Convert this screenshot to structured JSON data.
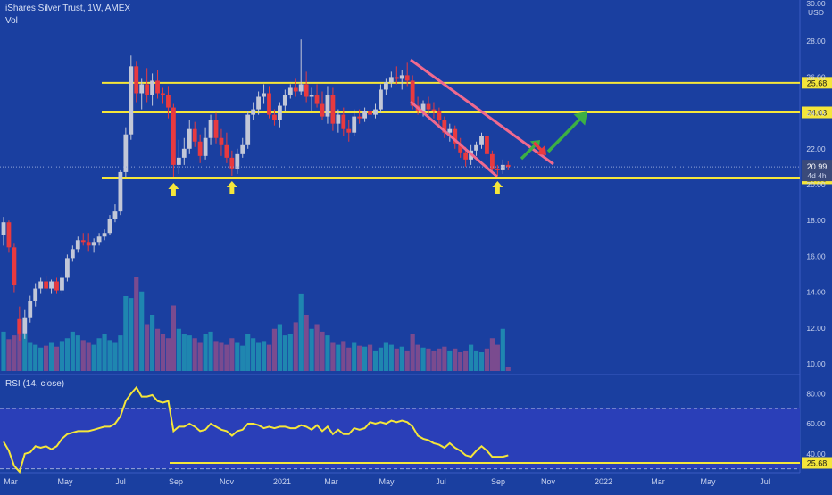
{
  "header": {
    "title": "iShares Silver Trust, 1W, AMEX",
    "volume_label": "Vol",
    "rsi_label": "RSI (14, close)"
  },
  "colors": {
    "background": "#1a3fa0",
    "rsi_panel": "#2a3fb8",
    "up": "#c2c7d8",
    "down": "#e83a3f",
    "vol_up": "#1f86b0",
    "vol_down": "#7a4b8f",
    "level": "#f5e63a",
    "channel": "#f06a8f",
    "arrow_green": "#3cb044",
    "arrow_red": "#e83a3f",
    "rsi_line": "#f5e63a"
  },
  "chart_data": [
    {
      "type": "candlestick",
      "title": "iShares Silver Trust, 1W, AMEX",
      "ylim": [
        9.6,
        30.2
      ],
      "price_ticks": [
        "10.00",
        "12.00",
        "14.00",
        "16.00",
        "18.00",
        "20.00",
        "22.00",
        "24.00",
        "26.00",
        "28.00",
        "30.00"
      ],
      "currency": "USD",
      "x_labels": [
        "Mar",
        "May",
        "Jul",
        "Sep",
        "Nov",
        "2021",
        "Mar",
        "May",
        "Jul",
        "Sep",
        "Nov",
        "2022",
        "Mar",
        "May",
        "Jul"
      ],
      "current_price": "20.99",
      "countdown": "4d 4h",
      "horizontal_levels": [
        {
          "value": 25.68,
          "label": "25.68"
        },
        {
          "value": 24.03,
          "label": "24.03"
        },
        {
          "value": 20.35,
          "label": "20.35"
        }
      ],
      "candles": [
        [
          17.2,
          18.2,
          16.6,
          17.9
        ],
        [
          17.9,
          18.0,
          16.2,
          16.5
        ],
        [
          16.5,
          16.7,
          14.0,
          14.4
        ],
        [
          12.5,
          13.2,
          11.3,
          11.7
        ],
        [
          11.7,
          13.0,
          11.4,
          12.6
        ],
        [
          12.6,
          13.8,
          12.3,
          13.5
        ],
        [
          13.5,
          14.5,
          13.2,
          14.2
        ],
        [
          14.2,
          14.8,
          13.9,
          14.6
        ],
        [
          14.6,
          14.9,
          14.1,
          14.2
        ],
        [
          14.2,
          14.7,
          13.9,
          14.6
        ],
        [
          14.6,
          14.8,
          13.9,
          14.1
        ],
        [
          14.1,
          15.0,
          13.9,
          14.8
        ],
        [
          14.8,
          16.1,
          14.6,
          15.9
        ],
        [
          15.9,
          16.6,
          15.7,
          16.4
        ],
        [
          16.4,
          17.1,
          16.2,
          16.9
        ],
        [
          16.9,
          17.3,
          16.6,
          16.8
        ],
        [
          16.8,
          17.3,
          16.3,
          16.6
        ],
        [
          16.6,
          17.0,
          16.2,
          16.8
        ],
        [
          16.8,
          17.3,
          16.6,
          17.1
        ],
        [
          17.1,
          17.5,
          16.9,
          17.3
        ],
        [
          17.3,
          18.3,
          17.2,
          18.1
        ],
        [
          18.1,
          18.9,
          17.9,
          18.5
        ],
        [
          18.5,
          20.8,
          18.3,
          20.7
        ],
        [
          20.7,
          23.2,
          20.4,
          22.8
        ],
        [
          22.8,
          27.2,
          22.5,
          26.6
        ],
        [
          26.6,
          26.9,
          24.6,
          25.1
        ],
        [
          25.1,
          25.9,
          24.2,
          25.6
        ],
        [
          25.6,
          26.5,
          24.6,
          25.0
        ],
        [
          25.0,
          26.2,
          24.4,
          25.8
        ],
        [
          25.8,
          26.4,
          24.8,
          25.1
        ],
        [
          25.1,
          25.4,
          24.5,
          25.0
        ],
        [
          25.0,
          25.5,
          23.7,
          24.3
        ],
        [
          24.3,
          24.5,
          20.4,
          21.1
        ],
        [
          21.1,
          22.5,
          20.6,
          21.5
        ],
        [
          21.5,
          22.6,
          21.1,
          22.0
        ],
        [
          22.0,
          23.6,
          21.7,
          23.1
        ],
        [
          23.1,
          23.5,
          22.1,
          22.4
        ],
        [
          22.4,
          22.8,
          21.2,
          21.6
        ],
        [
          21.6,
          23.2,
          21.4,
          22.6
        ],
        [
          22.6,
          23.9,
          22.2,
          23.6
        ],
        [
          23.6,
          24.0,
          22.3,
          22.6
        ],
        [
          22.6,
          23.1,
          21.6,
          22.2
        ],
        [
          22.2,
          22.9,
          21.2,
          21.5
        ],
        [
          21.5,
          21.9,
          20.5,
          20.9
        ],
        [
          20.9,
          22.0,
          20.6,
          21.7
        ],
        [
          21.7,
          22.6,
          21.5,
          22.2
        ],
        [
          22.2,
          24.1,
          22.0,
          23.9
        ],
        [
          23.9,
          24.6,
          23.6,
          24.2
        ],
        [
          24.2,
          25.2,
          23.9,
          24.9
        ],
        [
          24.9,
          25.6,
          24.5,
          25.1
        ],
        [
          25.1,
          25.5,
          23.7,
          23.9
        ],
        [
          23.9,
          24.2,
          23.3,
          23.6
        ],
        [
          23.6,
          24.6,
          23.2,
          24.4
        ],
        [
          24.4,
          25.3,
          24.1,
          25.0
        ],
        [
          25.0,
          25.6,
          24.8,
          25.4
        ],
        [
          25.4,
          25.9,
          24.9,
          25.2
        ],
        [
          25.2,
          28.1,
          25.0,
          25.6
        ],
        [
          25.6,
          26.3,
          24.6,
          24.9
        ],
        [
          24.9,
          25.4,
          24.1,
          25.0
        ],
        [
          25.0,
          25.6,
          24.3,
          24.5
        ],
        [
          24.5,
          25.2,
          23.6,
          23.8
        ],
        [
          23.8,
          25.5,
          23.4,
          25.0
        ],
        [
          25.0,
          25.4,
          23.0,
          23.4
        ],
        [
          23.4,
          24.2,
          22.9,
          23.9
        ],
        [
          23.9,
          24.3,
          22.7,
          23.1
        ],
        [
          23.1,
          23.6,
          22.4,
          22.9
        ],
        [
          22.9,
          24.2,
          22.7,
          23.8
        ],
        [
          23.8,
          24.2,
          23.4,
          23.7
        ],
        [
          23.7,
          24.3,
          23.5,
          24.1
        ],
        [
          24.1,
          24.4,
          23.7,
          23.9
        ],
        [
          23.9,
          24.5,
          23.7,
          24.2
        ],
        [
          24.2,
          25.6,
          24.0,
          25.3
        ],
        [
          25.3,
          25.9,
          25.0,
          25.7
        ],
        [
          25.7,
          26.3,
          25.4,
          26.0
        ],
        [
          26.0,
          26.6,
          25.6,
          25.9
        ],
        [
          25.9,
          26.4,
          25.3,
          26.1
        ],
        [
          26.1,
          26.8,
          25.5,
          25.8
        ],
        [
          25.8,
          26.1,
          24.2,
          24.4
        ],
        [
          24.4,
          24.9,
          23.9,
          24.1
        ],
        [
          24.1,
          24.7,
          23.8,
          24.5
        ],
        [
          24.5,
          24.9,
          23.9,
          24.2
        ],
        [
          24.2,
          24.6,
          23.7,
          24.1
        ],
        [
          24.1,
          24.3,
          23.2,
          23.6
        ],
        [
          23.6,
          23.8,
          22.6,
          22.9
        ],
        [
          22.9,
          23.4,
          22.4,
          23.1
        ],
        [
          23.1,
          23.3,
          22.0,
          22.3
        ],
        [
          22.3,
          22.6,
          21.5,
          21.8
        ],
        [
          21.8,
          22.1,
          21.0,
          21.4
        ],
        [
          21.4,
          22.2,
          21.1,
          21.9
        ],
        [
          21.9,
          22.4,
          21.6,
          22.2
        ],
        [
          22.2,
          22.9,
          22.0,
          22.7
        ],
        [
          22.7,
          22.9,
          21.4,
          21.7
        ],
        [
          21.7,
          21.9,
          20.7,
          20.9
        ],
        [
          20.9,
          21.1,
          20.5,
          20.8
        ],
        [
          20.8,
          21.4,
          20.6,
          21.1
        ],
        [
          21.1,
          21.3,
          20.8,
          20.99
        ]
      ],
      "volume_rel": [
        0.42,
        0.34,
        0.38,
        0.55,
        0.4,
        0.3,
        0.28,
        0.25,
        0.27,
        0.3,
        0.26,
        0.32,
        0.35,
        0.42,
        0.38,
        0.33,
        0.3,
        0.28,
        0.35,
        0.4,
        0.33,
        0.3,
        0.38,
        0.8,
        0.78,
        1.0,
        0.85,
        0.5,
        0.6,
        0.45,
        0.4,
        0.35,
        0.7,
        0.45,
        0.4,
        0.38,
        0.35,
        0.3,
        0.4,
        0.42,
        0.32,
        0.3,
        0.28,
        0.35,
        0.3,
        0.27,
        0.4,
        0.35,
        0.3,
        0.32,
        0.28,
        0.45,
        0.5,
        0.38,
        0.4,
        0.52,
        0.82,
        0.6,
        0.45,
        0.5,
        0.42,
        0.38,
        0.3,
        0.28,
        0.32,
        0.25,
        0.3,
        0.27,
        0.26,
        0.28,
        0.22,
        0.25,
        0.3,
        0.28,
        0.24,
        0.26,
        0.22,
        0.4,
        0.28,
        0.25,
        0.24,
        0.22,
        0.24,
        0.26,
        0.22,
        0.24,
        0.2,
        0.22,
        0.28,
        0.22,
        0.2,
        0.24,
        0.35,
        0.28,
        0.45,
        0.04
      ],
      "annotations": [
        {
          "type": "up-arrow",
          "candle": 32,
          "color": "yellow"
        },
        {
          "type": "up-arrow",
          "candle": 43,
          "color": "yellow"
        },
        {
          "type": "up-arrow",
          "candle": 93,
          "color": "yellow"
        },
        {
          "type": "descending-channel",
          "color": "pink"
        },
        {
          "type": "arrow",
          "color": "green",
          "direction": "up-right"
        },
        {
          "type": "arrow",
          "color": "red",
          "direction": "down-right"
        },
        {
          "type": "arrow",
          "color": "green",
          "direction": "up-right"
        }
      ]
    },
    {
      "type": "line",
      "title": "RSI (14, close)",
      "ylim": [
        28,
        92
      ],
      "y_ticks": [
        "40.00",
        "60.00",
        "80.00"
      ],
      "bands": [
        30,
        70
      ],
      "level_label": "25.68",
      "values": [
        48,
        42,
        32,
        28,
        40,
        41,
        45,
        44,
        45,
        43,
        45,
        50,
        53,
        54,
        55,
        55,
        55,
        56,
        57,
        58,
        58,
        60,
        65,
        75,
        80,
        84,
        78,
        78,
        79,
        75,
        74,
        75,
        55,
        58,
        58,
        60,
        58,
        55,
        56,
        60,
        58,
        56,
        55,
        52,
        55,
        56,
        60,
        60,
        59,
        57,
        58,
        57,
        58,
        58,
        57,
        57,
        59,
        58,
        56,
        59,
        55,
        58,
        53,
        56,
        53,
        53,
        57,
        56,
        57,
        61,
        60,
        61,
        60,
        62,
        61,
        62,
        61,
        58,
        52,
        50,
        49,
        47,
        46,
        44,
        47,
        44,
        42,
        39,
        38,
        42,
        45,
        42,
        38,
        38,
        38,
        39
      ],
      "annotations": [
        {
          "type": "arrow",
          "color": "green",
          "direction": "up-right"
        }
      ]
    }
  ]
}
